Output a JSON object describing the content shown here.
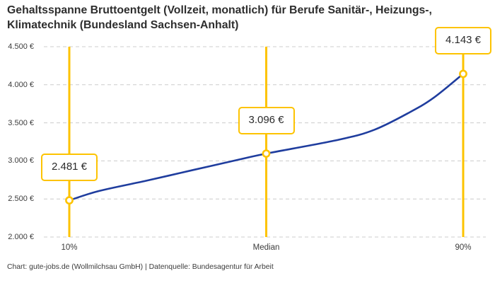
{
  "title": "Gehaltsspanne Bruttoentgelt (Vollzeit, monatlich) für Berufe Sanitär-, Heizungs-, Klimatechnik (Bundesland Sachsen-Anhalt)",
  "footer": "Chart: gute-jobs.de (Wollmilchsau GmbH) | Datenquelle: Bundesagentur für Arbeit",
  "colors": {
    "accent_gold": "#FDC300",
    "line_blue": "#1F3D9E",
    "grid": "#CCCCCC",
    "text": "#303030"
  },
  "chart_data": {
    "type": "line",
    "categories": [
      "10%",
      "Median",
      "90%"
    ],
    "values": [
      2481,
      3096,
      4143
    ],
    "value_labels": [
      "2.481 €",
      "3.096 €",
      "4.143 €"
    ],
    "ytick_labels": [
      "2.000 €",
      "2.500 €",
      "3.000 €",
      "3.500 €",
      "4.000 €",
      "4.500 €"
    ],
    "yticks": [
      2000,
      2500,
      3000,
      3500,
      4000,
      4500
    ],
    "ylim": [
      2000,
      4500
    ],
    "grid": "horizontal dashed",
    "legend": "none",
    "annotations": "value shown in gold-bordered box above each percentile marker"
  }
}
